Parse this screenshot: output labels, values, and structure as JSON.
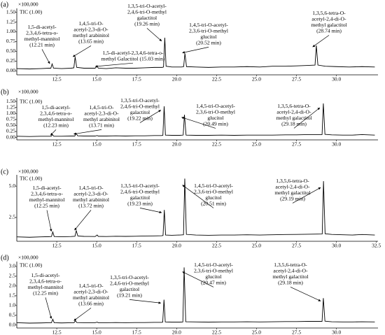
{
  "chart_data": [
    {
      "type": "line",
      "panel_label": "(a)",
      "scale_label": "×100,000",
      "trace_label": "TIC (1.00)",
      "color": "#000000",
      "xlim": [
        10.0,
        32.6
      ],
      "ylim": [
        -0.1,
        1.6
      ],
      "xticks": [
        12.5,
        {
          "value": 15,
          "label": "15.0"
        },
        17.5,
        {
          "value": 20,
          "label": "20.0"
        },
        22.5,
        {
          "value": 25,
          "label": "25.0"
        },
        27.5,
        {
          "value": 30,
          "label": "30.0"
        }
      ],
      "yticks": [
        {
          "value": 0,
          "label": "0.00"
        },
        0.25,
        {
          "value": 0.5,
          "label": "0.50"
        },
        0.75,
        {
          "value": 1,
          "label": "1.00"
        },
        1.25,
        {
          "value": 1.5,
          "label": "1.50"
        }
      ],
      "x": [
        10.0,
        10.8,
        11.5,
        12.0,
        12.13,
        12.21,
        12.3,
        12.8,
        13.4,
        13.57,
        13.65,
        13.75,
        14.2,
        14.9,
        15.03,
        15.1,
        15.6,
        16.2,
        16.8,
        17.4,
        18.0,
        18.6,
        19.1,
        19.18,
        19.26,
        19.34,
        19.7,
        20.3,
        20.44,
        20.52,
        20.62,
        21.2,
        22.0,
        22.8,
        23.6,
        24.4,
        25.2,
        26.0,
        26.8,
        27.5,
        28.2,
        28.66,
        28.74,
        28.84,
        29.3,
        30.0,
        30.8,
        31.6,
        32.4
      ],
      "values": [
        0.06,
        0.05,
        0.06,
        0.07,
        0.07,
        0.18,
        0.07,
        0.06,
        0.07,
        0.08,
        0.36,
        0.09,
        0.07,
        0.07,
        0.12,
        0.07,
        0.06,
        0.08,
        0.07,
        0.07,
        0.08,
        0.09,
        0.09,
        0.1,
        0.85,
        0.12,
        0.1,
        0.1,
        0.11,
        0.45,
        0.11,
        0.1,
        0.09,
        0.1,
        0.1,
        0.11,
        0.1,
        0.12,
        0.12,
        0.13,
        0.14,
        0.15,
        0.65,
        0.15,
        0.12,
        0.11,
        0.1,
        0.11,
        0.1
      ],
      "annotations": [
        {
          "lines": [
            "1,5-di-acetyl-",
            "2,3,4,6-tetra-o-",
            "methyl-mannitol",
            "(12.21 min)"
          ],
          "x": 12.15,
          "y": 0.22
        },
        {
          "lines": [
            "1,4,5-tri-O-",
            "acetyl-2,3-di-O-",
            "methyl arabinitol",
            "(13.65 min)"
          ],
          "x": 13.6,
          "y": 0.4
        },
        {
          "lines": [
            "1,5-di-acetyl-2,3,4,6-tetra-o-",
            "methyl Galactitol (15.03 min)"
          ],
          "x": 15.0,
          "y": 0.15
        },
        {
          "lines": [
            "1,3,5-tri-O-acetyl-",
            "2,4,6-tri-O-methyl",
            "galactitol",
            "(19.26 min)"
          ],
          "x": 19.15,
          "y": 0.8
        },
        {
          "lines": [
            "1,4,5-tri-O-acetyl-",
            "2,3,6-tri-O-methyl",
            "glucitol",
            "(20.52 min)"
          ],
          "x": 20.45,
          "y": 0.5
        },
        {
          "lines": [
            "1,3,5,6-tetra-O-",
            "acetyl-2,4-di-O-",
            "methyl galactitol",
            "(28.74 min)"
          ],
          "x": 28.6,
          "y": 0.65
        }
      ]
    },
    {
      "type": "line",
      "panel_label": "(b)",
      "scale_label": "×100,000",
      "trace_label": "TIC (1.00)",
      "color": "#000000",
      "xlim": [
        10.0,
        32.6
      ],
      "ylim": [
        -0.1,
        1.65
      ],
      "xticks": [
        12.5,
        {
          "value": 15,
          "label": "15.0"
        },
        17.5,
        {
          "value": 20,
          "label": "20.0"
        },
        22.5,
        {
          "value": 25,
          "label": "25.0"
        },
        27.5,
        {
          "value": 30,
          "label": "30.0"
        }
      ],
      "yticks": [
        {
          "value": 0,
          "label": "0.00"
        },
        0.25,
        {
          "value": 0.5,
          "label": "0.50"
        },
        0.75,
        {
          "value": 1,
          "label": "1.00"
        },
        1.25,
        {
          "value": 1.5,
          "label": "1.50"
        }
      ],
      "x": [
        10.0,
        10.8,
        11.5,
        12.0,
        12.15,
        12.23,
        12.32,
        12.8,
        13.4,
        13.63,
        13.71,
        13.81,
        14.2,
        14.9,
        15.03,
        15.1,
        15.6,
        16.2,
        16.8,
        17.4,
        18.0,
        18.6,
        19.05,
        19.14,
        19.22,
        19.3,
        19.7,
        20.2,
        20.41,
        20.49,
        20.59,
        21.2,
        22.0,
        22.8,
        23.6,
        24.4,
        25.2,
        26.0,
        26.8,
        27.5,
        28.2,
        29.1,
        29.18,
        29.28,
        29.7,
        30.4,
        31.0,
        31.6,
        32.4
      ],
      "values": [
        0.05,
        0.04,
        0.05,
        0.05,
        0.05,
        0.12,
        0.05,
        0.05,
        0.06,
        0.06,
        0.17,
        0.07,
        0.06,
        0.06,
        0.08,
        0.06,
        0.06,
        0.07,
        0.06,
        0.07,
        0.07,
        0.08,
        0.08,
        0.09,
        1.3,
        0.1,
        0.09,
        0.09,
        0.1,
        0.95,
        0.1,
        0.09,
        0.09,
        0.1,
        0.09,
        0.1,
        0.1,
        0.1,
        0.11,
        0.11,
        0.12,
        0.12,
        1.42,
        0.13,
        0.11,
        0.1,
        0.1,
        0.12,
        0.1
      ],
      "annotations": [
        {
          "lines": [
            "1,5-di-acetyl-",
            "2,3,4,6-tetra-o-",
            "methyl-mannitol",
            "(12.23 min)"
          ],
          "x": 12.2,
          "y": 0.15
        },
        {
          "lines": [
            "1,4,5-tri-O-",
            "acetyl-2,3-di-O-",
            "methyl arabinitol",
            "(13.71 min)"
          ],
          "x": 13.65,
          "y": 0.2
        },
        {
          "lines": [
            "1,3,5-tri-O-acetyl-",
            "2,4,6-tri-O-methyl",
            "galactitol",
            "(19.22 min)"
          ],
          "x": 19.1,
          "y": 1.2
        },
        {
          "lines": [
            "1,4,5-tri-O-acetyl-",
            "2,3,6-tri-O-methyl",
            "glucitol",
            "(20.49 min)"
          ],
          "x": 20.4,
          "y": 0.9
        },
        {
          "lines": [
            "1,3,5,6-tetra-O-",
            "acetyl-2,4-di-O-",
            "methyl galactitol",
            "(29.18 min)"
          ],
          "x": 29.05,
          "y": 1.3
        }
      ]
    },
    {
      "type": "line",
      "panel_label": "(c)",
      "scale_label": "×100,000",
      "trace_label": "TIC (1.00)",
      "color": "#000000",
      "xlim": [
        10.0,
        32.6
      ],
      "ylim": [
        0.6,
        5.9
      ],
      "xticks": [
        12.5,
        {
          "value": 15,
          "label": "15.0"
        },
        17.5,
        {
          "value": 20,
          "label": "20.0"
        },
        22.5,
        {
          "value": 25,
          "label": "25.0"
        },
        27.5,
        {
          "value": 30,
          "label": "30.0"
        },
        32.5
      ],
      "yticks": [
        2.5,
        {
          "value": 5,
          "label": "5.0"
        }
      ],
      "x": [
        10.0,
        10.8,
        11.5,
        12.0,
        12.17,
        12.25,
        12.34,
        12.8,
        13.4,
        13.64,
        13.72,
        13.82,
        14.2,
        14.9,
        15.03,
        15.1,
        15.6,
        16.2,
        16.8,
        17.4,
        18.0,
        18.6,
        19.06,
        19.15,
        19.23,
        19.31,
        19.7,
        20.2,
        20.43,
        20.51,
        20.61,
        21.2,
        22.0,
        22.8,
        23.6,
        24.4,
        25.2,
        26.0,
        26.8,
        27.5,
        28.2,
        29.11,
        29.19,
        29.29,
        29.7,
        30.4,
        31.0,
        31.6,
        32.4
      ],
      "values": [
        0.95,
        0.92,
        0.95,
        0.97,
        0.98,
        1.35,
        0.98,
        0.96,
        0.98,
        1.0,
        1.45,
        1.02,
        0.99,
        0.98,
        1.1,
        0.99,
        0.98,
        1.0,
        0.99,
        1.0,
        1.02,
        1.03,
        1.04,
        1.06,
        3.1,
        1.1,
        1.08,
        1.1,
        1.12,
        5.6,
        1.15,
        1.1,
        1.08,
        1.1,
        1.1,
        1.12,
        1.1,
        1.12,
        1.14,
        1.15,
        1.16,
        1.18,
        5.4,
        1.2,
        1.15,
        1.12,
        1.1,
        1.14,
        1.1
      ],
      "annotations": [
        {
          "lines": [
            "1,5-di-acetyl-",
            "2,3,4,6-tetra-o-",
            "methyl-mannitol",
            "(12.25 min)"
          ],
          "x": 12.25,
          "y": 1.5
        },
        {
          "lines": [
            "1,4,5-tri-O-",
            "acetyl-2,3-di-O-",
            "methyl arabinitol",
            "(13.72 min)"
          ],
          "x": 13.7,
          "y": 1.6
        },
        {
          "lines": [
            "1,3,5-tri-O-acetyl-",
            "2,4,6-tri-O-methyl",
            "galactitol",
            "(19.23 min)"
          ],
          "x": 19.15,
          "y": 3.0
        },
        {
          "lines": [
            "1,4,5-tri-O-acetyl-",
            "2,3,6-tri-O-methyl",
            "glucitol",
            "(20.51 min)"
          ],
          "x": 20.45,
          "y": 5.2
        },
        {
          "lines": [
            "1,3,5,6-tetra-O-",
            "acetyl-2,4-di-O-",
            "methyl galactitol",
            "(29.19 min)"
          ],
          "x": 29.1,
          "y": 5.0
        }
      ]
    },
    {
      "type": "line",
      "panel_label": "(d)",
      "scale_label": "×100,000",
      "trace_label": "TIC (1.00)",
      "color": "#000000",
      "xlim": [
        10.0,
        32.6
      ],
      "ylim": [
        -0.15,
        3.25
      ],
      "xticks": [
        12.5,
        {
          "value": 15,
          "label": "15.0"
        },
        17.5,
        {
          "value": 20,
          "label": "20.0"
        },
        22.5,
        {
          "value": 25,
          "label": "25.0"
        },
        27.5,
        {
          "value": 30,
          "label": "30.0"
        }
      ],
      "yticks": [
        {
          "value": 0,
          "label": "0.0"
        },
        0.5,
        {
          "value": 1,
          "label": "1.0"
        },
        1.5,
        {
          "value": 2,
          "label": "2.0"
        },
        2.5,
        {
          "value": 3,
          "label": "3.0"
        }
      ],
      "x": [
        10.0,
        10.8,
        11.5,
        12.0,
        12.17,
        12.25,
        12.34,
        12.8,
        13.4,
        13.58,
        13.66,
        13.76,
        14.2,
        14.9,
        15.03,
        15.1,
        15.6,
        16.2,
        16.8,
        17.4,
        18.0,
        18.6,
        19.04,
        19.13,
        19.21,
        19.29,
        19.7,
        20.2,
        20.39,
        20.47,
        20.57,
        21.2,
        22.0,
        22.8,
        23.6,
        24.4,
        25.2,
        26.0,
        26.8,
        27.5,
        28.2,
        29.1,
        29.18,
        29.28,
        29.7,
        30.4,
        31.0,
        31.6,
        32.4
      ],
      "values": [
        0.12,
        0.1,
        0.11,
        0.12,
        0.12,
        0.3,
        0.12,
        0.11,
        0.12,
        0.12,
        0.22,
        0.13,
        0.12,
        0.12,
        0.15,
        0.12,
        0.12,
        0.13,
        0.12,
        0.13,
        0.13,
        0.14,
        0.14,
        0.15,
        1.3,
        0.16,
        0.15,
        0.15,
        0.16,
        2.95,
        0.17,
        0.16,
        0.15,
        0.16,
        0.16,
        0.17,
        0.16,
        0.17,
        0.18,
        0.18,
        0.19,
        0.19,
        1.38,
        0.2,
        0.17,
        0.16,
        0.16,
        0.17,
        0.16
      ],
      "annotations": [
        {
          "lines": [
            "1,5-di-acetyl-",
            "2,3,4,6-tetra-o-",
            "methyl-mannitol",
            "(12.25 min)"
          ],
          "x": 12.25,
          "y": 0.4
        },
        {
          "lines": [
            "1,4,5-tri-O-",
            "acetyl-2,3-di-O-",
            "methyl arabinitol",
            "(13.66 min)"
          ],
          "x": 13.66,
          "y": 0.3
        },
        {
          "lines": [
            "1,3,5-tri-O-acetyl-",
            "2,4,6-tri-O-methyl",
            "galactitol",
            "(19.21 min)"
          ],
          "x": 19.1,
          "y": 1.2
        },
        {
          "lines": [
            "1,4,5-tri-O-acetyl-",
            "2,3,6-tri-O-methyl",
            "glucitol",
            "(20.47 min)"
          ],
          "x": 20.45,
          "y": 2.8
        },
        {
          "lines": [
            "1,3,5,6-tetra-O-",
            "acetyl-2,4-di-O-",
            "methyl galactitol",
            "(29.18 min)"
          ],
          "x": 29.1,
          "y": 1.3
        }
      ]
    }
  ]
}
